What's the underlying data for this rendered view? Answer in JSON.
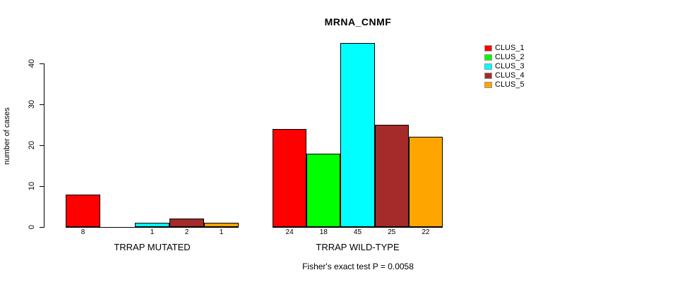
{
  "page": {
    "background_color": "#FFFFFF",
    "text_color": "#000000"
  },
  "chart_data": {
    "type": "bar",
    "title": "MRNA_CNMF",
    "ylabel": "number of cases",
    "xlabel": "",
    "categories": [
      "TRRAP MUTATED",
      "TRRAP WILD-TYPE"
    ],
    "series": [
      {
        "name": "CLUS_1",
        "color": "#FF0000",
        "values": [
          8,
          24
        ]
      },
      {
        "name": "CLUS_2",
        "color": "#00FF00",
        "values": [
          0,
          18
        ]
      },
      {
        "name": "CLUS_3",
        "color": "#00FFFF",
        "values": [
          1,
          45
        ]
      },
      {
        "name": "CLUS_4",
        "color": "#A52A2A",
        "values": [
          2,
          25
        ]
      },
      {
        "name": "CLUS_5",
        "color": "#FFA500",
        "values": [
          1,
          22
        ]
      }
    ],
    "bar_labels": [
      [
        "8",
        "",
        "1",
        "2",
        "1"
      ],
      [
        "24",
        "18",
        "45",
        "25",
        "22"
      ]
    ],
    "yticks": [
      0,
      10,
      20,
      30,
      40
    ],
    "ylim": [
      0,
      46
    ],
    "grid": false,
    "legend_position": "right",
    "legend_entries": [
      "CLUS_1",
      "CLUS_2",
      "CLUS_3",
      "CLUS_4",
      "CLUS_5"
    ],
    "annotation": "Fisher's exact test P = 0.0058"
  }
}
